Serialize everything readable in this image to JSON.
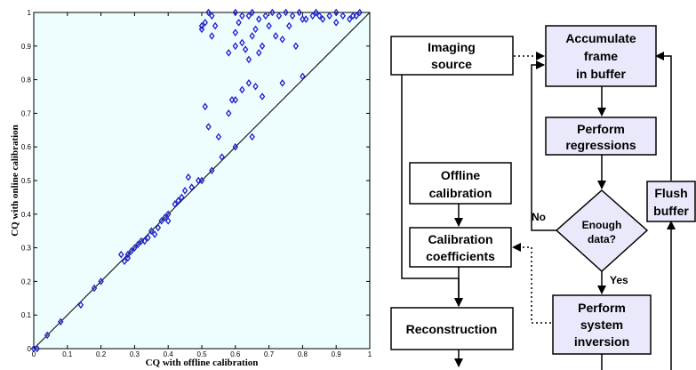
{
  "chart_data": {
    "type": "scatter",
    "xlabel": "CQ with offline calibration",
    "ylabel": "CQ with online calibration",
    "xlim": [
      0,
      1
    ],
    "ylim": [
      0,
      1
    ],
    "xticks": [
      "0",
      "0.1",
      "0.2",
      "0.3",
      "0.4",
      "0.5",
      "0.6",
      "0.7",
      "0.8",
      "0.9",
      "1"
    ],
    "yticks": [
      "0",
      "0.1",
      "0.2",
      "0.3",
      "0.4",
      "0.5",
      "0.6",
      "0.7",
      "0.8",
      "0.9",
      "1"
    ],
    "reference_line": "y = x",
    "colors": {
      "markers": "#1f1fcc",
      "background": "#eefdfd"
    },
    "points": [
      [
        0.0,
        0.0
      ],
      [
        0.01,
        0.0
      ],
      [
        0.04,
        0.04
      ],
      [
        0.08,
        0.08
      ],
      [
        0.14,
        0.13
      ],
      [
        0.18,
        0.18
      ],
      [
        0.2,
        0.2
      ],
      [
        0.26,
        0.28
      ],
      [
        0.27,
        0.26
      ],
      [
        0.28,
        0.27
      ],
      [
        0.28,
        0.28
      ],
      [
        0.29,
        0.29
      ],
      [
        0.3,
        0.3
      ],
      [
        0.31,
        0.31
      ],
      [
        0.32,
        0.32
      ],
      [
        0.33,
        0.32
      ],
      [
        0.34,
        0.33
      ],
      [
        0.35,
        0.35
      ],
      [
        0.36,
        0.34
      ],
      [
        0.37,
        0.36
      ],
      [
        0.38,
        0.38
      ],
      [
        0.39,
        0.39
      ],
      [
        0.4,
        0.38
      ],
      [
        0.4,
        0.4
      ],
      [
        0.42,
        0.43
      ],
      [
        0.43,
        0.44
      ],
      [
        0.44,
        0.45
      ],
      [
        0.45,
        0.47
      ],
      [
        0.46,
        0.51
      ],
      [
        0.47,
        0.48
      ],
      [
        0.49,
        0.5
      ],
      [
        0.5,
        0.5
      ],
      [
        0.53,
        0.53
      ],
      [
        0.56,
        0.57
      ],
      [
        0.6,
        0.6
      ],
      [
        0.65,
        0.63
      ],
      [
        0.51,
        0.72
      ],
      [
        0.52,
        0.66
      ],
      [
        0.55,
        0.63
      ],
      [
        0.58,
        0.7
      ],
      [
        0.59,
        0.74
      ],
      [
        0.6,
        0.74
      ],
      [
        0.62,
        0.77
      ],
      [
        0.64,
        0.79
      ],
      [
        0.66,
        0.78
      ],
      [
        0.68,
        0.75
      ],
      [
        0.74,
        0.79
      ],
      [
        0.8,
        0.81
      ],
      [
        0.5,
        0.95
      ],
      [
        0.5,
        0.96
      ],
      [
        0.51,
        0.97
      ],
      [
        0.52,
        1.0
      ],
      [
        0.53,
        0.99
      ],
      [
        0.53,
        0.93
      ],
      [
        0.54,
        0.96
      ],
      [
        0.58,
        0.88
      ],
      [
        0.6,
        0.9
      ],
      [
        0.6,
        0.94
      ],
      [
        0.61,
        0.97
      ],
      [
        0.62,
        0.91
      ],
      [
        0.63,
        0.89
      ],
      [
        0.64,
        0.86
      ],
      [
        0.65,
        0.93
      ],
      [
        0.66,
        0.95
      ],
      [
        0.67,
        0.88
      ],
      [
        0.68,
        0.9
      ],
      [
        0.7,
        0.96
      ],
      [
        0.72,
        0.93
      ],
      [
        0.74,
        0.92
      ],
      [
        0.76,
        0.96
      ],
      [
        0.78,
        0.9
      ],
      [
        0.8,
        0.98
      ],
      [
        0.6,
        1.0
      ],
      [
        0.62,
        0.99
      ],
      [
        0.64,
        0.99
      ],
      [
        0.65,
        1.0
      ],
      [
        0.67,
        0.98
      ],
      [
        0.69,
        0.99
      ],
      [
        0.71,
        1.0
      ],
      [
        0.73,
        0.99
      ],
      [
        0.75,
        1.0
      ],
      [
        0.77,
        0.99
      ],
      [
        0.79,
        1.0
      ],
      [
        0.81,
        0.98
      ],
      [
        0.83,
        0.99
      ],
      [
        0.85,
        0.99
      ],
      [
        0.86,
        0.98
      ],
      [
        0.88,
        0.99
      ],
      [
        0.9,
        0.97
      ],
      [
        0.92,
        0.99
      ],
      [
        0.94,
        0.98
      ],
      [
        0.95,
        0.99
      ],
      [
        0.96,
        0.99
      ],
      [
        0.97,
        1.0
      ],
      [
        0.84,
        1.0
      ],
      [
        0.9,
        1.0
      ]
    ]
  },
  "flowchart": {
    "nodes": {
      "imaging_source": {
        "lines": [
          "Imaging",
          "source"
        ]
      },
      "accumulate": {
        "lines": [
          "Accumulate",
          "frame",
          "in buffer"
        ]
      },
      "perform_regressions": {
        "lines": [
          "Perform",
          "regressions"
        ]
      },
      "offline_calibration": {
        "lines": [
          "Offline",
          "calibration"
        ]
      },
      "calibration_coefficients": {
        "lines": [
          "Calibration",
          "coefficients"
        ]
      },
      "enough_data": {
        "lines": [
          "Enough",
          "data?"
        ]
      },
      "flush_buffer": {
        "lines": [
          "Flush",
          "buffer"
        ]
      },
      "reconstruction": {
        "lines": [
          "Reconstruction"
        ]
      },
      "perform_inversion": {
        "lines": [
          "Perform",
          "system",
          "inversion"
        ]
      }
    },
    "edge_labels": {
      "no": "No",
      "yes": "Yes"
    },
    "colors": {
      "highlight_fill": "#e9e9fb",
      "plain_fill": "#ffffff",
      "stroke": "#000000"
    }
  }
}
